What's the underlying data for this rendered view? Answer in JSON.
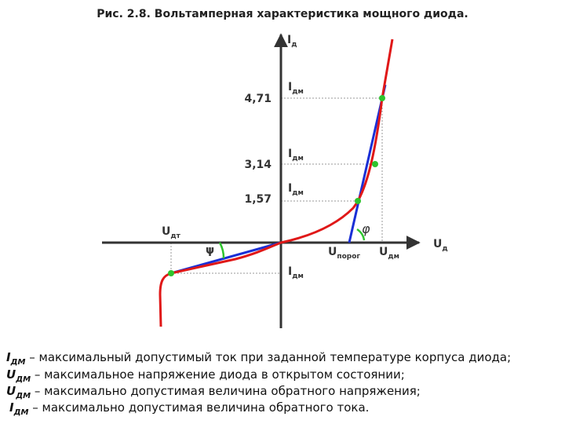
{
  "title": "Рис. 2.8. Вольтамперная характеристика мощного диода.",
  "axes": {
    "y": {
      "main": "I",
      "sub": "д"
    },
    "x": {
      "main": "U",
      "sub": "д"
    }
  },
  "ticks": [
    "4,71",
    "3,14",
    "1,57"
  ],
  "labels": [
    {
      "main": "I",
      "sub": "дм"
    },
    {
      "main": "I",
      "sub": "дм"
    },
    {
      "main": "I",
      "sub": "дм"
    },
    {
      "main": "I",
      "sub": "дм"
    },
    {
      "main": "U",
      "sub": "дт"
    },
    {
      "main": "U",
      "sub": "порог"
    },
    {
      "main": "U",
      "sub": "дм"
    },
    {
      "main": "ψ"
    },
    {
      "main": "φ"
    }
  ],
  "legend": [
    {
      "symbol": "I",
      "sub": "ДМ",
      "text": "– максимальный допустимый ток при заданной температуре корпуса диода;"
    },
    {
      "symbol": "U",
      "sub": "ДМ",
      "text": "– максимальное напряжение диода в открытом состоянии;"
    },
    {
      "symbol": "U",
      "sub": "ДМ",
      "text": "– максимально допустимая величина обратного напряжения;"
    },
    {
      "symbol": "I",
      "sub": "ДМ",
      "text": "– максимально допустимая величина обратного тока."
    }
  ]
}
